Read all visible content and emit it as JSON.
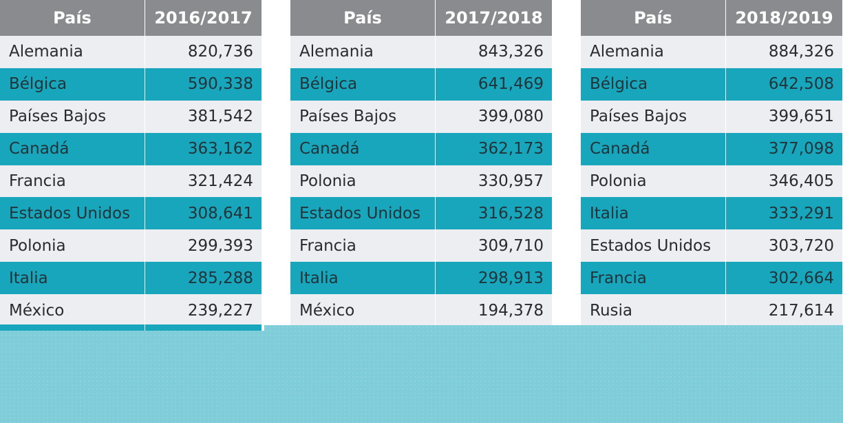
{
  "colors": {
    "header": "#8a8b8e",
    "row_light": "#eceef2",
    "row_teal": "#18a6bc",
    "band": "#7ecdd9"
  },
  "tables": [
    {
      "header": {
        "country": "País",
        "year": "2016/2017"
      },
      "rows": [
        {
          "country": "Alemania",
          "value": "820,736"
        },
        {
          "country": "Bélgica",
          "value": "590,338"
        },
        {
          "country": "Países Bajos",
          "value": "381,542"
        },
        {
          "country": "Canadá",
          "value": "363,162"
        },
        {
          "country": "Francia",
          "value": "321,424"
        },
        {
          "country": "Estados Unidos",
          "value": "308,641"
        },
        {
          "country": "Polonia",
          "value": "299,393"
        },
        {
          "country": "Italia",
          "value": "285,288"
        },
        {
          "country": "México",
          "value": "239,227"
        }
      ]
    },
    {
      "header": {
        "country": "País",
        "year": "2017/2018"
      },
      "rows": [
        {
          "country": "Alemania",
          "value": "843,326"
        },
        {
          "country": "Bélgica",
          "value": "641,469"
        },
        {
          "country": "Países Bajos",
          "value": "399,080"
        },
        {
          "country": "Canadá",
          "value": "362,173"
        },
        {
          "country": "Polonia",
          "value": "330,957"
        },
        {
          "country": "Estados Unidos",
          "value": "316,528"
        },
        {
          "country": "Francia",
          "value": "309,710"
        },
        {
          "country": "Italia",
          "value": "298,913"
        },
        {
          "country": "México",
          "value": "194,378"
        }
      ]
    },
    {
      "header": {
        "country": "País",
        "year": "2018/2019"
      },
      "rows": [
        {
          "country": "Alemania",
          "value": "884,326"
        },
        {
          "country": "Bélgica",
          "value": "642,508"
        },
        {
          "country": "Países Bajos",
          "value": "399,651"
        },
        {
          "country": "Canadá",
          "value": "377,098"
        },
        {
          "country": "Polonia",
          "value": "346,405"
        },
        {
          "country": "Italia",
          "value": "333,291"
        },
        {
          "country": "Estados Unidos",
          "value": "303,720"
        },
        {
          "country": "Francia",
          "value": "302,664"
        },
        {
          "country": "Rusia",
          "value": "217,614"
        }
      ]
    }
  ]
}
